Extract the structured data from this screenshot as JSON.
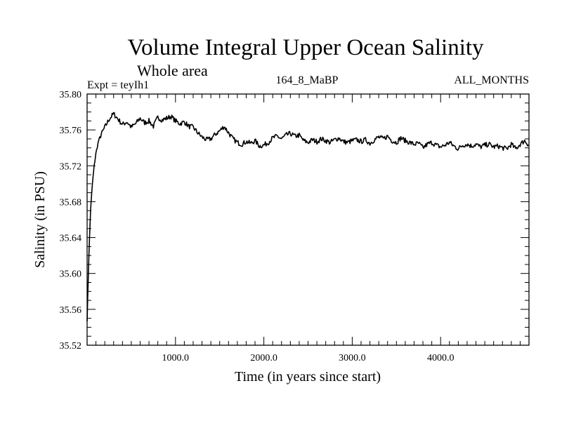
{
  "chart_data": {
    "type": "line",
    "title": "Volume Integral Upper Ocean Salinity",
    "subtitle": "Whole area",
    "expt_label": "Expt = teyIh1",
    "run_label": "164_8_MaBP",
    "months_label": "ALL_MONTHS",
    "xlabel": "Time (in years since start)",
    "ylabel": "Salinity (in PSU)",
    "xlim": [
      0,
      5000
    ],
    "ylim": [
      35.52,
      35.8
    ],
    "x_major_ticks": [
      1000,
      2000,
      3000,
      4000
    ],
    "x_tick_labels": [
      "1000.0",
      "2000.0",
      "3000.0",
      "4000.0"
    ],
    "y_major_ticks": [
      35.52,
      35.56,
      35.6,
      35.64,
      35.68,
      35.72,
      35.76,
      35.8
    ],
    "y_tick_labels": [
      "35.52",
      "35.56",
      "35.60",
      "35.64",
      "35.68",
      "35.72",
      "35.76",
      "35.80"
    ],
    "series": [
      {
        "name": "Salinity",
        "x": [
          0,
          20,
          40,
          60,
          80,
          100,
          130,
          160,
          200,
          250,
          300,
          350,
          400,
          450,
          500,
          550,
          600,
          650,
          700,
          750,
          800,
          850,
          900,
          950,
          1000,
          1050,
          1100,
          1150,
          1200,
          1250,
          1300,
          1350,
          1400,
          1450,
          1500,
          1550,
          1600,
          1650,
          1700,
          1750,
          1800,
          1850,
          1900,
          1950,
          2000,
          2050,
          2100,
          2150,
          2200,
          2250,
          2300,
          2350,
          2400,
          2450,
          2500,
          2550,
          2600,
          2650,
          2700,
          2750,
          2800,
          2850,
          2900,
          2950,
          3000,
          3050,
          3100,
          3150,
          3200,
          3250,
          3300,
          3350,
          3400,
          3450,
          3500,
          3550,
          3600,
          3650,
          3700,
          3750,
          3800,
          3850,
          3900,
          3950,
          4000,
          4050,
          4100,
          4150,
          4200,
          4250,
          4300,
          4350,
          4400,
          4450,
          4500,
          4550,
          4600,
          4650,
          4700,
          4750,
          4800,
          4850,
          4900,
          4950,
          5000
        ],
        "y": [
          35.548,
          35.62,
          35.672,
          35.7,
          35.72,
          35.734,
          35.748,
          35.755,
          35.763,
          35.772,
          35.778,
          35.772,
          35.766,
          35.769,
          35.763,
          35.767,
          35.773,
          35.768,
          35.77,
          35.764,
          35.774,
          35.771,
          35.773,
          35.775,
          35.77,
          35.767,
          35.769,
          35.764,
          35.763,
          35.757,
          35.752,
          35.749,
          35.75,
          35.755,
          35.759,
          35.764,
          35.757,
          35.75,
          35.746,
          35.744,
          35.747,
          35.745,
          35.748,
          35.742,
          35.743,
          35.746,
          35.751,
          35.753,
          35.75,
          35.754,
          35.756,
          35.753,
          35.754,
          35.748,
          35.746,
          35.749,
          35.747,
          35.75,
          35.748,
          35.746,
          35.749,
          35.751,
          35.747,
          35.746,
          35.748,
          35.749,
          35.747,
          35.749,
          35.745,
          35.749,
          35.752,
          35.75,
          35.753,
          35.748,
          35.746,
          35.751,
          35.748,
          35.746,
          35.744,
          35.745,
          35.74,
          35.744,
          35.746,
          35.743,
          35.741,
          35.743,
          35.746,
          35.742,
          35.739,
          35.743,
          35.744,
          35.742,
          35.744,
          35.741,
          35.743,
          35.744,
          35.741,
          35.742,
          35.74,
          35.739,
          35.744,
          35.739,
          35.744,
          35.748,
          35.743
        ]
      }
    ]
  }
}
